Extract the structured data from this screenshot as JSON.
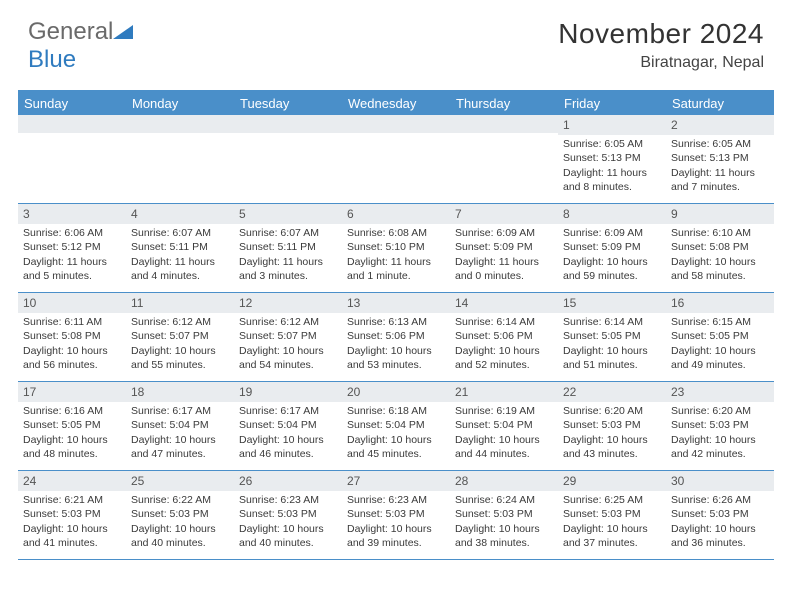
{
  "logo": {
    "textA": "General",
    "textB": "Blue"
  },
  "title": "November 2024",
  "location": "Biratnagar, Nepal",
  "colors": {
    "header_blue": "#4a8fc9",
    "daynum_bg": "#e9ecef",
    "text": "#3a3a3a",
    "border": "#4a8fc9",
    "background": "#ffffff"
  },
  "day_headers": [
    "Sunday",
    "Monday",
    "Tuesday",
    "Wednesday",
    "Thursday",
    "Friday",
    "Saturday"
  ],
  "weeks": [
    [
      {
        "blank": true
      },
      {
        "blank": true
      },
      {
        "blank": true
      },
      {
        "blank": true
      },
      {
        "blank": true
      },
      {
        "day": "1",
        "sunrise": "Sunrise: 6:05 AM",
        "sunset": "Sunset: 5:13 PM",
        "daylight": "Daylight: 11 hours and 8 minutes."
      },
      {
        "day": "2",
        "sunrise": "Sunrise: 6:05 AM",
        "sunset": "Sunset: 5:13 PM",
        "daylight": "Daylight: 11 hours and 7 minutes."
      }
    ],
    [
      {
        "day": "3",
        "sunrise": "Sunrise: 6:06 AM",
        "sunset": "Sunset: 5:12 PM",
        "daylight": "Daylight: 11 hours and 5 minutes."
      },
      {
        "day": "4",
        "sunrise": "Sunrise: 6:07 AM",
        "sunset": "Sunset: 5:11 PM",
        "daylight": "Daylight: 11 hours and 4 minutes."
      },
      {
        "day": "5",
        "sunrise": "Sunrise: 6:07 AM",
        "sunset": "Sunset: 5:11 PM",
        "daylight": "Daylight: 11 hours and 3 minutes."
      },
      {
        "day": "6",
        "sunrise": "Sunrise: 6:08 AM",
        "sunset": "Sunset: 5:10 PM",
        "daylight": "Daylight: 11 hours and 1 minute."
      },
      {
        "day": "7",
        "sunrise": "Sunrise: 6:09 AM",
        "sunset": "Sunset: 5:09 PM",
        "daylight": "Daylight: 11 hours and 0 minutes."
      },
      {
        "day": "8",
        "sunrise": "Sunrise: 6:09 AM",
        "sunset": "Sunset: 5:09 PM",
        "daylight": "Daylight: 10 hours and 59 minutes."
      },
      {
        "day": "9",
        "sunrise": "Sunrise: 6:10 AM",
        "sunset": "Sunset: 5:08 PM",
        "daylight": "Daylight: 10 hours and 58 minutes."
      }
    ],
    [
      {
        "day": "10",
        "sunrise": "Sunrise: 6:11 AM",
        "sunset": "Sunset: 5:08 PM",
        "daylight": "Daylight: 10 hours and 56 minutes."
      },
      {
        "day": "11",
        "sunrise": "Sunrise: 6:12 AM",
        "sunset": "Sunset: 5:07 PM",
        "daylight": "Daylight: 10 hours and 55 minutes."
      },
      {
        "day": "12",
        "sunrise": "Sunrise: 6:12 AM",
        "sunset": "Sunset: 5:07 PM",
        "daylight": "Daylight: 10 hours and 54 minutes."
      },
      {
        "day": "13",
        "sunrise": "Sunrise: 6:13 AM",
        "sunset": "Sunset: 5:06 PM",
        "daylight": "Daylight: 10 hours and 53 minutes."
      },
      {
        "day": "14",
        "sunrise": "Sunrise: 6:14 AM",
        "sunset": "Sunset: 5:06 PM",
        "daylight": "Daylight: 10 hours and 52 minutes."
      },
      {
        "day": "15",
        "sunrise": "Sunrise: 6:14 AM",
        "sunset": "Sunset: 5:05 PM",
        "daylight": "Daylight: 10 hours and 51 minutes."
      },
      {
        "day": "16",
        "sunrise": "Sunrise: 6:15 AM",
        "sunset": "Sunset: 5:05 PM",
        "daylight": "Daylight: 10 hours and 49 minutes."
      }
    ],
    [
      {
        "day": "17",
        "sunrise": "Sunrise: 6:16 AM",
        "sunset": "Sunset: 5:05 PM",
        "daylight": "Daylight: 10 hours and 48 minutes."
      },
      {
        "day": "18",
        "sunrise": "Sunrise: 6:17 AM",
        "sunset": "Sunset: 5:04 PM",
        "daylight": "Daylight: 10 hours and 47 minutes."
      },
      {
        "day": "19",
        "sunrise": "Sunrise: 6:17 AM",
        "sunset": "Sunset: 5:04 PM",
        "daylight": "Daylight: 10 hours and 46 minutes."
      },
      {
        "day": "20",
        "sunrise": "Sunrise: 6:18 AM",
        "sunset": "Sunset: 5:04 PM",
        "daylight": "Daylight: 10 hours and 45 minutes."
      },
      {
        "day": "21",
        "sunrise": "Sunrise: 6:19 AM",
        "sunset": "Sunset: 5:04 PM",
        "daylight": "Daylight: 10 hours and 44 minutes."
      },
      {
        "day": "22",
        "sunrise": "Sunrise: 6:20 AM",
        "sunset": "Sunset: 5:03 PM",
        "daylight": "Daylight: 10 hours and 43 minutes."
      },
      {
        "day": "23",
        "sunrise": "Sunrise: 6:20 AM",
        "sunset": "Sunset: 5:03 PM",
        "daylight": "Daylight: 10 hours and 42 minutes."
      }
    ],
    [
      {
        "day": "24",
        "sunrise": "Sunrise: 6:21 AM",
        "sunset": "Sunset: 5:03 PM",
        "daylight": "Daylight: 10 hours and 41 minutes."
      },
      {
        "day": "25",
        "sunrise": "Sunrise: 6:22 AM",
        "sunset": "Sunset: 5:03 PM",
        "daylight": "Daylight: 10 hours and 40 minutes."
      },
      {
        "day": "26",
        "sunrise": "Sunrise: 6:23 AM",
        "sunset": "Sunset: 5:03 PM",
        "daylight": "Daylight: 10 hours and 40 minutes."
      },
      {
        "day": "27",
        "sunrise": "Sunrise: 6:23 AM",
        "sunset": "Sunset: 5:03 PM",
        "daylight": "Daylight: 10 hours and 39 minutes."
      },
      {
        "day": "28",
        "sunrise": "Sunrise: 6:24 AM",
        "sunset": "Sunset: 5:03 PM",
        "daylight": "Daylight: 10 hours and 38 minutes."
      },
      {
        "day": "29",
        "sunrise": "Sunrise: 6:25 AM",
        "sunset": "Sunset: 5:03 PM",
        "daylight": "Daylight: 10 hours and 37 minutes."
      },
      {
        "day": "30",
        "sunrise": "Sunrise: 6:26 AM",
        "sunset": "Sunset: 5:03 PM",
        "daylight": "Daylight: 10 hours and 36 minutes."
      }
    ]
  ]
}
